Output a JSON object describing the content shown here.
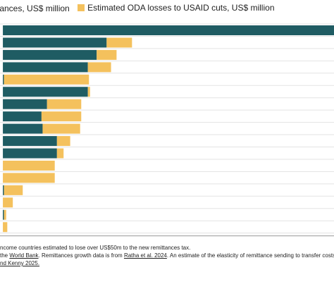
{
  "legend": {
    "remit_label": "tances, US$ million",
    "oda_label": "Estimated ODA losses to USAID cuts, US$ million"
  },
  "colors": {
    "remit": "#1f5c63",
    "oda": "#f4c15d",
    "grid": "#e3e3e3"
  },
  "notes": {
    "line1": "ncome countries estimated to lose over US$50m to the new remittances tax.",
    "line2_a": "the ",
    "line2_link1": "World Bank",
    "line2_b": ". Remittances growth data is from ",
    "line2_link2": "Ratha et al. 2024",
    "line2_c": ". An estimate of the elasticity of remittance sending to transfer costs",
    "line3": "nd Kenny 2025."
  },
  "chart_data": {
    "type": "bar",
    "orientation": "horizontal",
    "stacked": true,
    "xlabel": "US$ million",
    "xlim": [
      -13,
      1500
    ],
    "xticks": [
      200,
      400,
      600,
      800,
      1000,
      1200,
      1400
    ],
    "grid": true,
    "legend_position": "top-left",
    "series": [
      {
        "key": "remit",
        "name": "tances, US$ million",
        "values": [
          1600,
          470,
          425,
          385,
          5,
          385,
          200,
          175,
          180,
          245,
          245,
          0,
          0,
          5,
          0,
          5,
          0
        ]
      },
      {
        "key": "oda",
        "name": "Estimated ODA losses to USAID cuts, US$ million",
        "values": [
          0,
          115,
          90,
          105,
          385,
          10,
          155,
          180,
          170,
          60,
          30,
          235,
          235,
          85,
          45,
          10,
          20
        ]
      }
    ]
  }
}
